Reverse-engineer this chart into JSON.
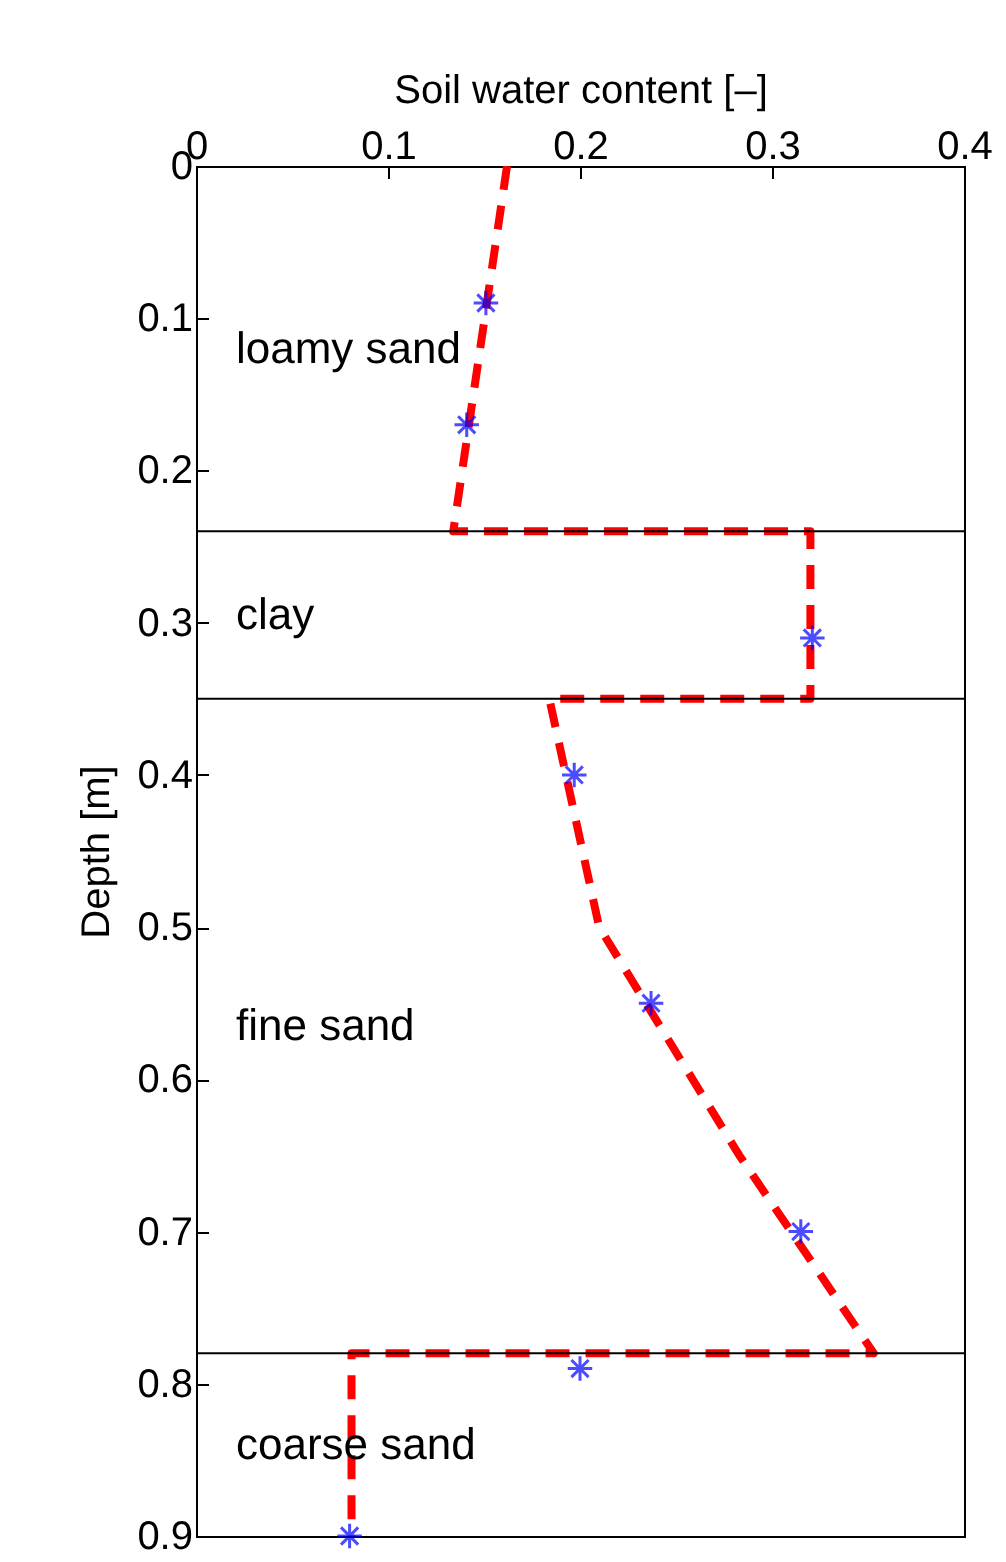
{
  "chart_data": {
    "type": "line",
    "xlabel": "Soil water content [–]",
    "ylabel": "Depth [m]",
    "xlim": [
      0,
      0.4
    ],
    "xticks": [
      0,
      0.1,
      0.2,
      0.3,
      0.4
    ],
    "ylim": [
      0.9,
      0
    ],
    "yticks": [
      0,
      0.1,
      0.2,
      0.3,
      0.4,
      0.5,
      0.6,
      0.7,
      0.8,
      0.9
    ],
    "grid": false,
    "series": [
      {
        "type": "line",
        "color": "#ff0000",
        "line_style": "dashed",
        "marker": "none",
        "x": [
          0.162,
          0.134,
          0.134,
          0.32,
          0.32,
          0.184,
          0.21,
          0.283,
          0.353,
          0.081,
          0.081
        ],
        "values": [
          0,
          0.24,
          0.24,
          0.24,
          0.35,
          0.35,
          0.5,
          0.65,
          0.78,
          0.78,
          0.9
        ]
      },
      {
        "type": "scatter",
        "color": "#0000ff",
        "marker": "cross",
        "x": [
          0.151,
          0.141,
          0.321,
          0.197,
          0.237,
          0.315,
          0.2,
          0.08
        ],
        "values": [
          0.09,
          0.17,
          0.31,
          0.4,
          0.55,
          0.7,
          0.79,
          0.9
        ]
      }
    ],
    "ref_lines": [
      {
        "axis": "y",
        "value": 0.24,
        "color": "#000000"
      },
      {
        "axis": "y",
        "value": 0.35,
        "color": "#000000"
      },
      {
        "axis": "y",
        "value": 0.78,
        "color": "#000000"
      }
    ],
    "annotations": [
      "loamy sand",
      "clay",
      "fine sand",
      "coarse sand"
    ]
  }
}
